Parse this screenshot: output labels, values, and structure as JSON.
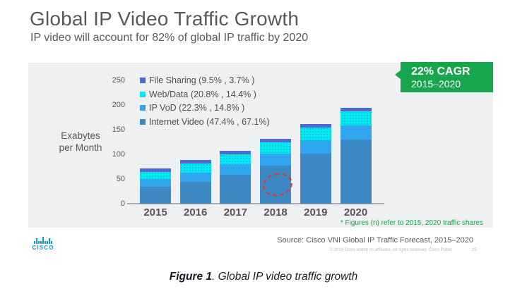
{
  "header": {
    "title": "Global IP Video Traffic Growth",
    "subtitle": "IP video will account for 82% of global IP traffic by 2020"
  },
  "badge": {
    "line1": "22% CAGR",
    "line2": "2015–2020",
    "color": "#17a54e"
  },
  "axis": {
    "unit_line1": "Exabytes",
    "unit_line2": "per Month"
  },
  "legend": {
    "items": [
      {
        "label": "File Sharing (9.5% , 3.7% )",
        "color": "#5068d2"
      },
      {
        "label": "Web/Data (20.8% , 14.4% )",
        "color": "#05e9f1"
      },
      {
        "label": "IP VoD (22.3% , 14.8% )",
        "color": "#30a5f0"
      },
      {
        "label": "Internet Video (47.4% , 67.1%)",
        "color": "#3b88c4"
      }
    ]
  },
  "annotation": {
    "highlights": "67.1%",
    "color": "#e8332a",
    "style": "dashed-ellipse"
  },
  "chart_data": {
    "type": "bar",
    "stacked": true,
    "title": "Global IP Video Traffic Growth",
    "ylabel": "Exabytes per Month",
    "ylim": [
      0,
      250
    ],
    "yticks": [
      0,
      50,
      100,
      150,
      200,
      250
    ],
    "grid": false,
    "legend_position": "upper-left",
    "categories": [
      "2015",
      "2016",
      "2017",
      "2018",
      "2019",
      "2020"
    ],
    "series": [
      {
        "name": "Internet Video",
        "color": "#3b88c4",
        "values": [
          34,
          45,
          59,
          77,
          102,
          130
        ],
        "share_2015": "47.4%",
        "share_2020": "67.1%"
      },
      {
        "name": "IP VoD",
        "color": "#30a5f0",
        "values": [
          16,
          18,
          21,
          24,
          27,
          29
        ],
        "share_2015": "22.3%",
        "share_2020": "14.8%"
      },
      {
        "name": "Web/Data",
        "color": "#05e9f1",
        "pattern": "dots",
        "values": [
          15,
          18,
          20,
          23,
          25,
          28
        ],
        "share_2015": "20.8%",
        "share_2020": "14.4%"
      },
      {
        "name": "File Sharing",
        "color": "#5068d2",
        "values": [
          7,
          7,
          7,
          7,
          7,
          7
        ],
        "share_2015": "9.5%",
        "share_2020": "3.7%"
      }
    ],
    "totals": [
      72,
      88,
      107,
      131,
      161,
      194
    ]
  },
  "footnote": {
    "text": "* Figures (n) refer to 2015, 2020 traffic shares",
    "color": "#0caa4d"
  },
  "source": {
    "text": "Source: Cisco VNI Global IP Traffic Forecast, 2015–2020"
  },
  "footer": {
    "copyright": "© 2016  Cisco and/or its affiliates. All rights reserved.    Cisco Public",
    "page_number": "25",
    "logo_text": "CISCO",
    "logo_color": "#129ad3"
  },
  "caption": {
    "figure_label": "Figure 1",
    "text": ". Global IP video traffic growth"
  }
}
